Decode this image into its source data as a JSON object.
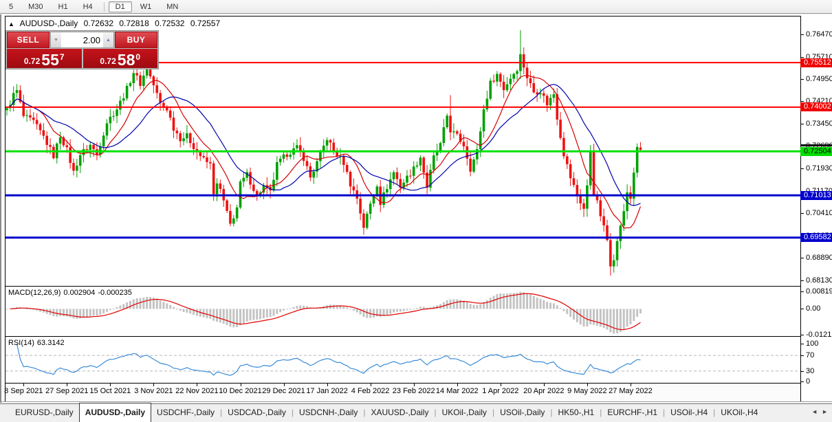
{
  "toolbar": {
    "timeframes": [
      {
        "label": "5",
        "active": false
      },
      {
        "label": "M30",
        "active": false
      },
      {
        "label": "H1",
        "active": false
      },
      {
        "label": "H4",
        "active": false
      },
      {
        "label": "D1",
        "active": true
      },
      {
        "label": "W1",
        "active": false
      },
      {
        "label": "MN",
        "active": false
      }
    ]
  },
  "chart": {
    "collapse_icon": "▲",
    "symbol": "AUDUSD-,Daily",
    "open": "0.72632",
    "high": "0.72818",
    "low": "0.72532",
    "close": "0.72557"
  },
  "trade_panel": {
    "sell_label": "SELL",
    "buy_label": "BUY",
    "volume": "2.00",
    "volume_down_icon": "▼",
    "volume_up_icon": "▲",
    "sell_price_prefix": "0.72",
    "sell_price_big": "55",
    "sell_price_sup": "7",
    "buy_price_prefix": "0.72",
    "buy_price_big": "58",
    "buy_price_sup": "0"
  },
  "price_axis": {
    "ticks": [
      "0.76470",
      "0.75710",
      "0.74950",
      "0.74210",
      "0.73450",
      "0.72690",
      "0.71930",
      "0.71170",
      "0.70410",
      "0.69650",
      "0.68890",
      "0.68130"
    ],
    "badges": [
      {
        "value": "0.75512",
        "bg": "#ee0000",
        "fg": "#ffffff"
      },
      {
        "value": "0.74002",
        "bg": "#ee0000",
        "fg": "#ffffff"
      },
      {
        "value": "0.72504",
        "bg": "#00dd00",
        "fg": "#000000"
      },
      {
        "value": "0.71013",
        "bg": "#0000cc",
        "fg": "#ffffff"
      },
      {
        "value": "0.69582",
        "bg": "#0000cc",
        "fg": "#ffffff"
      }
    ],
    "last_price": "0.72557"
  },
  "indicators": {
    "macd": {
      "label": "MACD(12,26,9)",
      "value_main": "0.002904",
      "value_signal": "-0.000235",
      "axis": [
        "0.008197",
        "0.00",
        "-0.012121"
      ]
    },
    "rsi": {
      "label": "RSI(14)",
      "value": "63.3142",
      "axis": [
        "100",
        "70",
        "30",
        "0"
      ]
    }
  },
  "date_axis": {
    "labels": [
      "8 Sep 2021",
      "27 Sep 2021",
      "15 Oct 2021",
      "3 Nov 2021",
      "22 Nov 2021",
      "10 Dec 2021",
      "29 Dec 2021",
      "17 Jan 2022",
      "4 Feb 2022",
      "23 Feb 2022",
      "14 Mar 2022",
      "1 Apr 2022",
      "20 Apr 2022",
      "9 May 2022",
      "27 May 2022"
    ]
  },
  "tabs": {
    "items": [
      "EURUSD-,Daily",
      "AUDUSD-,Daily",
      "USDCHF-,Daily",
      "USDCAD-,Daily",
      "USDCNH-,Daily",
      "XAUUSD-,Daily",
      "UKOil-,Daily",
      "USOil-,Daily",
      "HK50-,H1",
      "EURCHF-,H1",
      "USOil-,H4",
      "UKOil-,H4"
    ],
    "active": "AUDUSD-,Daily",
    "scroll_left_icon": "◄",
    "scroll_right_icon": "►"
  },
  "chart_data": {
    "type": "candlestick",
    "symbol": "AUDUSD",
    "timeframe": "Daily",
    "ohlc_current": {
      "open": 0.72632,
      "high": 0.72818,
      "low": 0.72532,
      "close": 0.72557
    },
    "price_axis_range": [
      0.6813,
      0.7647
    ],
    "bars_total": 191,
    "up_color": "#00a000",
    "down_color": "#ee1212",
    "close_anchors": [
      [
        0,
        0.739
      ],
      [
        2,
        0.7442
      ],
      [
        3,
        0.7455
      ],
      [
        5,
        0.7369
      ],
      [
        8,
        0.735
      ],
      [
        11,
        0.73
      ],
      [
        14,
        0.7235
      ],
      [
        16,
        0.7305
      ],
      [
        18,
        0.7255
      ],
      [
        20,
        0.718
      ],
      [
        22,
        0.724
      ],
      [
        25,
        0.7272
      ],
      [
        27,
        0.724
      ],
      [
        30,
        0.735
      ],
      [
        33,
        0.7395
      ],
      [
        36,
        0.7462
      ],
      [
        38,
        0.752
      ],
      [
        40,
        0.748
      ],
      [
        42,
        0.7532
      ],
      [
        44,
        0.7475
      ],
      [
        46,
        0.7412
      ],
      [
        48,
        0.7395
      ],
      [
        50,
        0.733
      ],
      [
        52,
        0.7295
      ],
      [
        54,
        0.7302
      ],
      [
        57,
        0.725
      ],
      [
        59,
        0.7222
      ],
      [
        61,
        0.7205
      ],
      [
        62,
        0.7113
      ],
      [
        63,
        0.7135
      ],
      [
        64,
        0.712
      ],
      [
        66,
        0.704
      ],
      [
        67,
        0.7002
      ],
      [
        69,
        0.706
      ],
      [
        70,
        0.714
      ],
      [
        72,
        0.7172
      ],
      [
        75,
        0.71
      ],
      [
        77,
        0.7132
      ],
      [
        79,
        0.711
      ],
      [
        81,
        0.7205
      ],
      [
        84,
        0.7242
      ],
      [
        87,
        0.7262
      ],
      [
        89,
        0.7228
      ],
      [
        91,
        0.7162
      ],
      [
        93,
        0.7212
      ],
      [
        96,
        0.7295
      ],
      [
        98,
        0.7252
      ],
      [
        101,
        0.7212
      ],
      [
        103,
        0.714
      ],
      [
        105,
        0.7092
      ],
      [
        107,
        0.6995
      ],
      [
        109,
        0.7072
      ],
      [
        111,
        0.714
      ],
      [
        112,
        0.7077
      ],
      [
        114,
        0.713
      ],
      [
        116,
        0.718
      ],
      [
        118,
        0.7132
      ],
      [
        120,
        0.7162
      ],
      [
        122,
        0.7192
      ],
      [
        124,
        0.7232
      ],
      [
        126,
        0.713
      ],
      [
        128,
        0.723
      ],
      [
        130,
        0.7272
      ],
      [
        132,
        0.7372
      ],
      [
        133,
        0.7322
      ],
      [
        135,
        0.7302
      ],
      [
        137,
        0.7272
      ],
      [
        139,
        0.7192
      ],
      [
        141,
        0.7252
      ],
      [
        143,
        0.7392
      ],
      [
        145,
        0.7482
      ],
      [
        147,
        0.7512
      ],
      [
        149,
        0.7462
      ],
      [
        151,
        0.75
      ],
      [
        153,
        0.7532
      ],
      [
        154,
        0.7576
      ],
      [
        156,
        0.7502
      ],
      [
        158,
        0.7452
      ],
      [
        160,
        0.7456
      ],
      [
        162,
        0.7412
      ],
      [
        164,
        0.7446
      ],
      [
        165,
        0.7366
      ],
      [
        167,
        0.7242
      ],
      [
        169,
        0.7162
      ],
      [
        171,
        0.7102
      ],
      [
        173,
        0.7056
      ],
      [
        174,
        0.713
      ],
      [
        175,
        0.7252
      ],
      [
        176,
        0.7112
      ],
      [
        177,
        0.7076
      ],
      [
        179,
        0.6992
      ],
      [
        180,
        0.695
      ],
      [
        181,
        0.687
      ],
      [
        182,
        0.6892
      ],
      [
        183,
        0.6942
      ],
      [
        184,
        0.7002
      ],
      [
        185,
        0.7042
      ],
      [
        186,
        0.7112
      ],
      [
        187,
        0.7092
      ],
      [
        188,
        0.7182
      ],
      [
        189,
        0.7257
      ],
      [
        190,
        0.7256
      ]
    ],
    "special_bars": [
      {
        "bar": 3,
        "high": 0.7478
      },
      {
        "bar": 20,
        "low": 0.7169
      },
      {
        "bar": 107,
        "low": 0.6968
      },
      {
        "bar": 133,
        "high": 0.7441
      },
      {
        "bar": 154,
        "high": 0.7661
      },
      {
        "bar": 181,
        "low": 0.6829
      },
      {
        "bar": 190,
        "open": 0.72632,
        "high": 0.72818,
        "low": 0.72532,
        "close": 0.72557
      }
    ],
    "levels": [
      {
        "price": 0.75512,
        "color": "#ff0000",
        "width": 2
      },
      {
        "price": 0.74002,
        "color": "#ff0000",
        "width": 2
      },
      {
        "price": 0.72504,
        "color": "#00e000",
        "width": 3
      },
      {
        "price": 0.71013,
        "color": "#0000cc",
        "width": 3
      },
      {
        "price": 0.69582,
        "color": "#0000cc",
        "width": 3
      }
    ],
    "moving_averages": [
      {
        "type": "sma",
        "period": 10,
        "color": "#d40000"
      },
      {
        "type": "sma",
        "period": 21,
        "color": "#0000aa"
      }
    ],
    "macd": {
      "fast": 12,
      "slow": 26,
      "signal": 9,
      "current_main": 0.002904,
      "current_signal": -0.000235,
      "axis_max": 0.008197,
      "axis_min": -0.012121,
      "histogram_color": "#c3c3c3",
      "signal_color": "#e00000"
    },
    "rsi": {
      "period": 14,
      "current": 63.3142,
      "levels": [
        30,
        70
      ],
      "color": "#3a8bd8"
    },
    "x_label_bars": [
      5,
      18,
      31,
      44,
      57,
      70,
      83,
      96,
      109,
      122,
      135,
      148,
      161,
      174,
      187
    ],
    "x_labels": [
      "8 Sep 2021",
      "27 Sep 2021",
      "15 Oct 2021",
      "3 Nov 2021",
      "22 Nov 2021",
      "10 Dec 2021",
      "29 Dec 2021",
      "17 Jan 2022",
      "4 Feb 2022",
      "23 Feb 2022",
      "14 Mar 2022",
      "1 Apr 2022",
      "20 Apr 2022",
      "9 May 2022",
      "27 May 2022"
    ]
  }
}
